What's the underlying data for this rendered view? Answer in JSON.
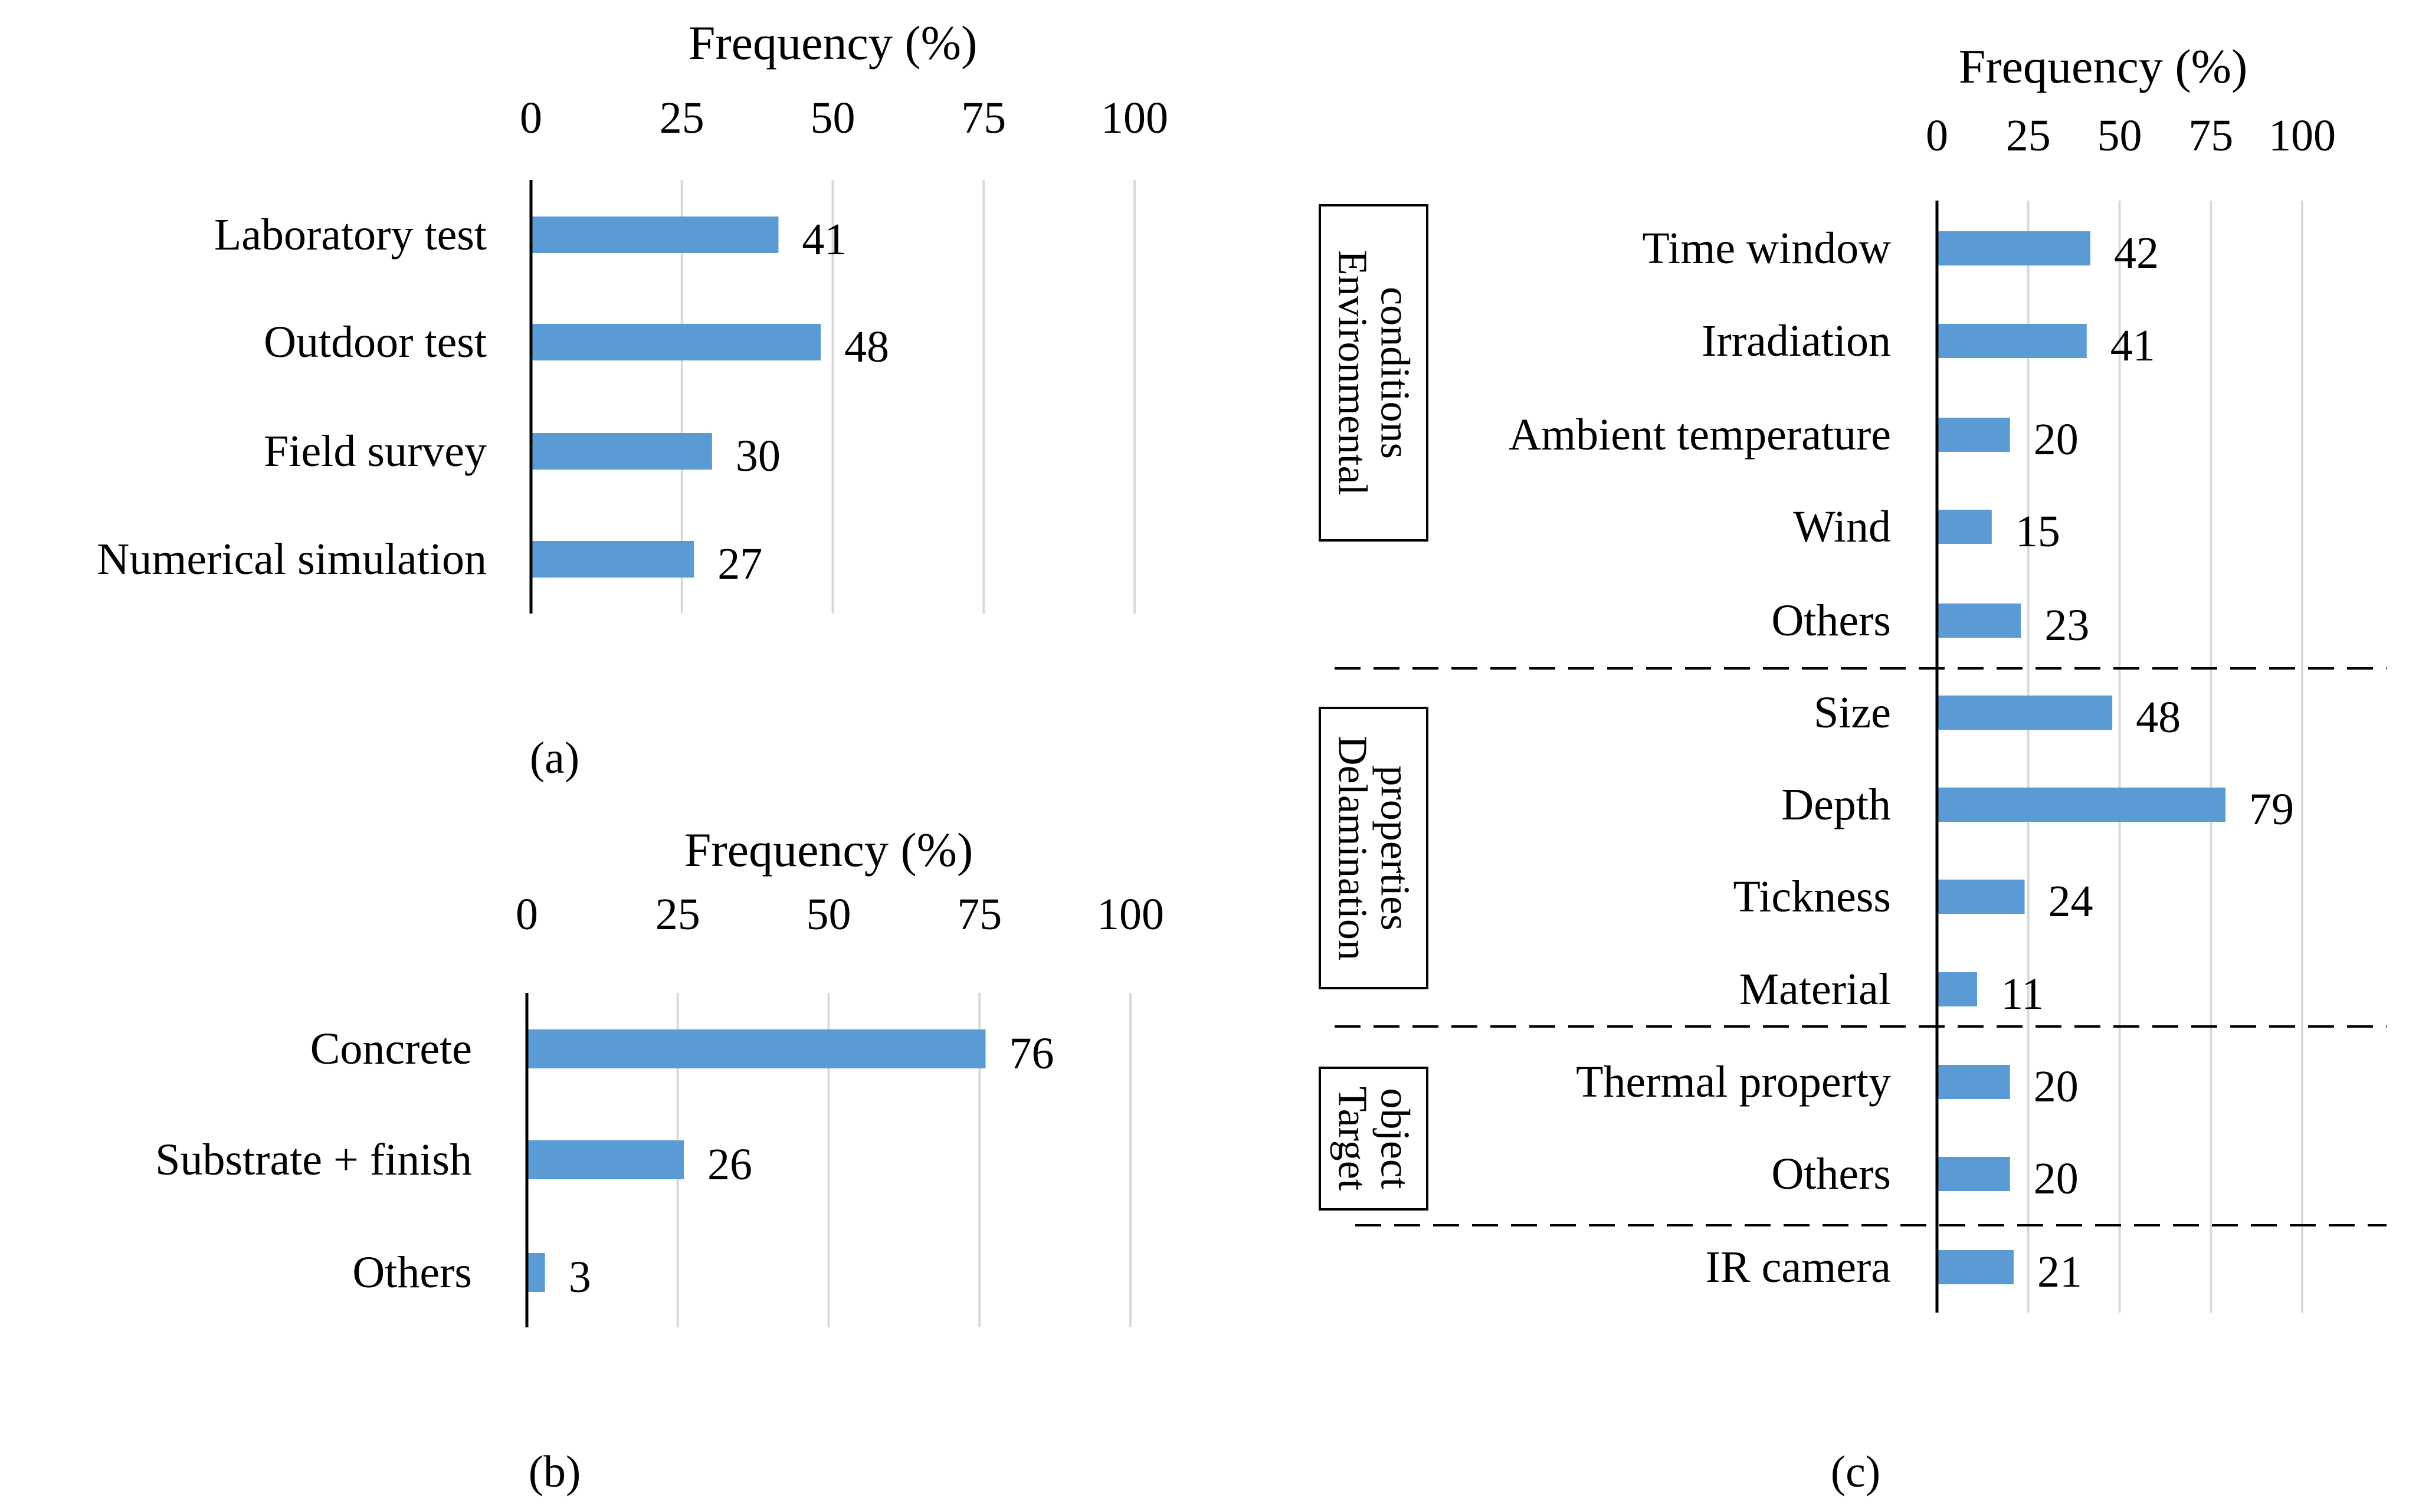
{
  "chart_data": [
    {
      "id": "a",
      "type": "bar",
      "orientation": "horizontal",
      "panel_label": "(a)",
      "xlabel": "Frequency (%)",
      "xlim": [
        0,
        100
      ],
      "xticks": [
        0,
        25,
        50,
        75,
        100
      ],
      "grid": true,
      "color": "#5b9bd5",
      "categories": [
        "Laboratory test",
        "Outdoor test",
        "Field survey",
        "Numerical simulation"
      ],
      "values": [
        41,
        48,
        30,
        27
      ],
      "value_labels": [
        "41",
        "48",
        "30",
        "27"
      ]
    },
    {
      "id": "b",
      "type": "bar",
      "orientation": "horizontal",
      "panel_label": "(b)",
      "xlabel": "Frequency (%)",
      "xlim": [
        0,
        100
      ],
      "xticks": [
        0,
        25,
        50,
        75,
        100
      ],
      "grid": true,
      "color": "#5b9bd5",
      "categories": [
        "Concrete",
        "Substrate + finish",
        "Others"
      ],
      "values": [
        76,
        26,
        3
      ],
      "value_labels": [
        "76",
        "26",
        "3"
      ]
    },
    {
      "id": "c",
      "type": "bar",
      "orientation": "horizontal",
      "panel_label": "(c)",
      "xlabel": "Frequency (%)",
      "xlim": [
        0,
        100
      ],
      "xticks": [
        0,
        25,
        50,
        75,
        100
      ],
      "grid": true,
      "color": "#5b9bd5",
      "categories": [
        "Time window",
        "Irradiation",
        "Ambient temperature",
        "Wind",
        "Others",
        "Size",
        "Depth",
        "Tickness",
        "Material",
        "Thermal property",
        "Others",
        "IR camera"
      ],
      "values": [
        42,
        41,
        20,
        15,
        23,
        48,
        79,
        24,
        11,
        20,
        20,
        21
      ],
      "value_labels": [
        "42",
        "41",
        "20",
        "15",
        "23",
        "48",
        "79",
        "24",
        "11",
        "20",
        "20",
        "21"
      ],
      "groups": [
        {
          "label_lines": [
            "Environmental",
            "conditions"
          ],
          "first": 0,
          "last": 4
        },
        {
          "label_lines": [
            "Delamination",
            "properties"
          ],
          "first": 5,
          "last": 8
        },
        {
          "label_lines": [
            "Target",
            "object"
          ],
          "first": 9,
          "last": 10
        }
      ]
    }
  ]
}
